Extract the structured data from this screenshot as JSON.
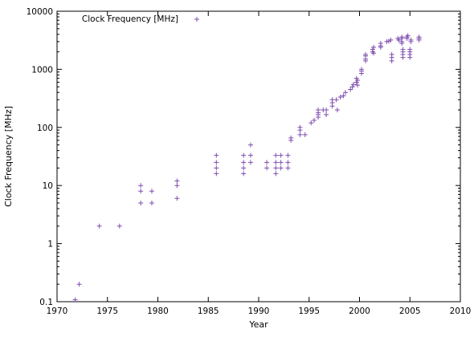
{
  "chart_data": {
    "type": "scatter",
    "title": "",
    "xlabel": "Year",
    "ylabel": "Clock Frequency [MHz]",
    "xlim": [
      1970,
      2010
    ],
    "ylim": [
      0.1,
      10000
    ],
    "yscale": "log",
    "grid": false,
    "legend_position": "top-left",
    "x_ticks": [
      1970,
      1975,
      1980,
      1985,
      1990,
      1995,
      2000,
      2005,
      2010
    ],
    "y_ticks": [
      {
        "value": 0.1,
        "label": "0.1"
      },
      {
        "value": 1,
        "label": "1"
      },
      {
        "value": 10,
        "label": "10"
      },
      {
        "value": 100,
        "label": "100"
      },
      {
        "value": 1000,
        "label": "1000"
      },
      {
        "value": 10000,
        "label": "10000"
      }
    ],
    "color": "#7f4fb0",
    "series": [
      {
        "name": "Clock Frequency [MHz]",
        "points": [
          [
            1971.8,
            0.108
          ],
          [
            1972.2,
            0.2
          ],
          [
            1974.2,
            2
          ],
          [
            1976.2,
            2
          ],
          [
            1978.3,
            10
          ],
          [
            1978.3,
            8
          ],
          [
            1978.3,
            5
          ],
          [
            1979.4,
            8
          ],
          [
            1979.4,
            5
          ],
          [
            1981.9,
            12
          ],
          [
            1981.9,
            10
          ],
          [
            1981.9,
            6
          ],
          [
            1985.8,
            33
          ],
          [
            1985.8,
            25
          ],
          [
            1985.8,
            20
          ],
          [
            1985.8,
            16
          ],
          [
            1988.5,
            33
          ],
          [
            1988.5,
            25
          ],
          [
            1988.5,
            20
          ],
          [
            1988.5,
            16
          ],
          [
            1989.2,
            50
          ],
          [
            1989.2,
            33
          ],
          [
            1989.2,
            25
          ],
          [
            1990.8,
            25
          ],
          [
            1990.8,
            20
          ],
          [
            1991.7,
            33
          ],
          [
            1991.7,
            25
          ],
          [
            1991.7,
            20
          ],
          [
            1991.7,
            16
          ],
          [
            1992.2,
            33
          ],
          [
            1992.2,
            25
          ],
          [
            1992.2,
            20
          ],
          [
            1992.9,
            33
          ],
          [
            1992.9,
            25
          ],
          [
            1992.9,
            20
          ],
          [
            1993.2,
            66
          ],
          [
            1993.2,
            60
          ],
          [
            1994.1,
            100
          ],
          [
            1994.1,
            90
          ],
          [
            1994.1,
            75
          ],
          [
            1994.6,
            75
          ],
          [
            1995.2,
            120
          ],
          [
            1995.5,
            133
          ],
          [
            1995.9,
            200
          ],
          [
            1995.9,
            180
          ],
          [
            1995.9,
            166
          ],
          [
            1995.9,
            150
          ],
          [
            1996.4,
            200
          ],
          [
            1996.7,
            200
          ],
          [
            1996.7,
            166
          ],
          [
            1997.3,
            300
          ],
          [
            1997.3,
            266
          ],
          [
            1997.3,
            233
          ],
          [
            1997.7,
            300
          ],
          [
            1997.8,
            200
          ],
          [
            1998.1,
            333
          ],
          [
            1998.4,
            350
          ],
          [
            1998.6,
            400
          ],
          [
            1999.1,
            450
          ],
          [
            1999.3,
            500
          ],
          [
            1999.4,
            550
          ],
          [
            1999.7,
            600
          ],
          [
            1999.7,
            700
          ],
          [
            1999.8,
            650
          ],
          [
            1999.8,
            533
          ],
          [
            2000.2,
            1000
          ],
          [
            2000.2,
            933
          ],
          [
            2000.2,
            850
          ],
          [
            2000.6,
            1500
          ],
          [
            2000.6,
            1700
          ],
          [
            2000.6,
            1800
          ],
          [
            2000.6,
            1400
          ],
          [
            2001.3,
            2000
          ],
          [
            2001.3,
            2200
          ],
          [
            2001.4,
            2400
          ],
          [
            2001.4,
            1900
          ],
          [
            2002.1,
            2800
          ],
          [
            2002.1,
            2533
          ],
          [
            2002.1,
            2400
          ],
          [
            2002.7,
            3000
          ],
          [
            2002.9,
            3060
          ],
          [
            2003.1,
            3200
          ],
          [
            2003.2,
            1600
          ],
          [
            2003.2,
            1400
          ],
          [
            2003.2,
            1800
          ],
          [
            2003.8,
            3400
          ],
          [
            2003.9,
            3200
          ],
          [
            2004.2,
            3600
          ],
          [
            2004.2,
            3400
          ],
          [
            2004.2,
            2800
          ],
          [
            2004.2,
            3000
          ],
          [
            2004.3,
            2000
          ],
          [
            2004.3,
            1800
          ],
          [
            2004.3,
            1600
          ],
          [
            2004.3,
            2200
          ],
          [
            2004.7,
            3400
          ],
          [
            2004.7,
            3600
          ],
          [
            2004.8,
            3800
          ],
          [
            2005.0,
            2000
          ],
          [
            2005.0,
            1800
          ],
          [
            2005.0,
            2200
          ],
          [
            2005.0,
            1600
          ],
          [
            2005.1,
            3200
          ],
          [
            2005.1,
            3000
          ],
          [
            2005.9,
            3200
          ],
          [
            2005.9,
            3400
          ],
          [
            2005.9,
            3600
          ]
        ]
      }
    ]
  }
}
